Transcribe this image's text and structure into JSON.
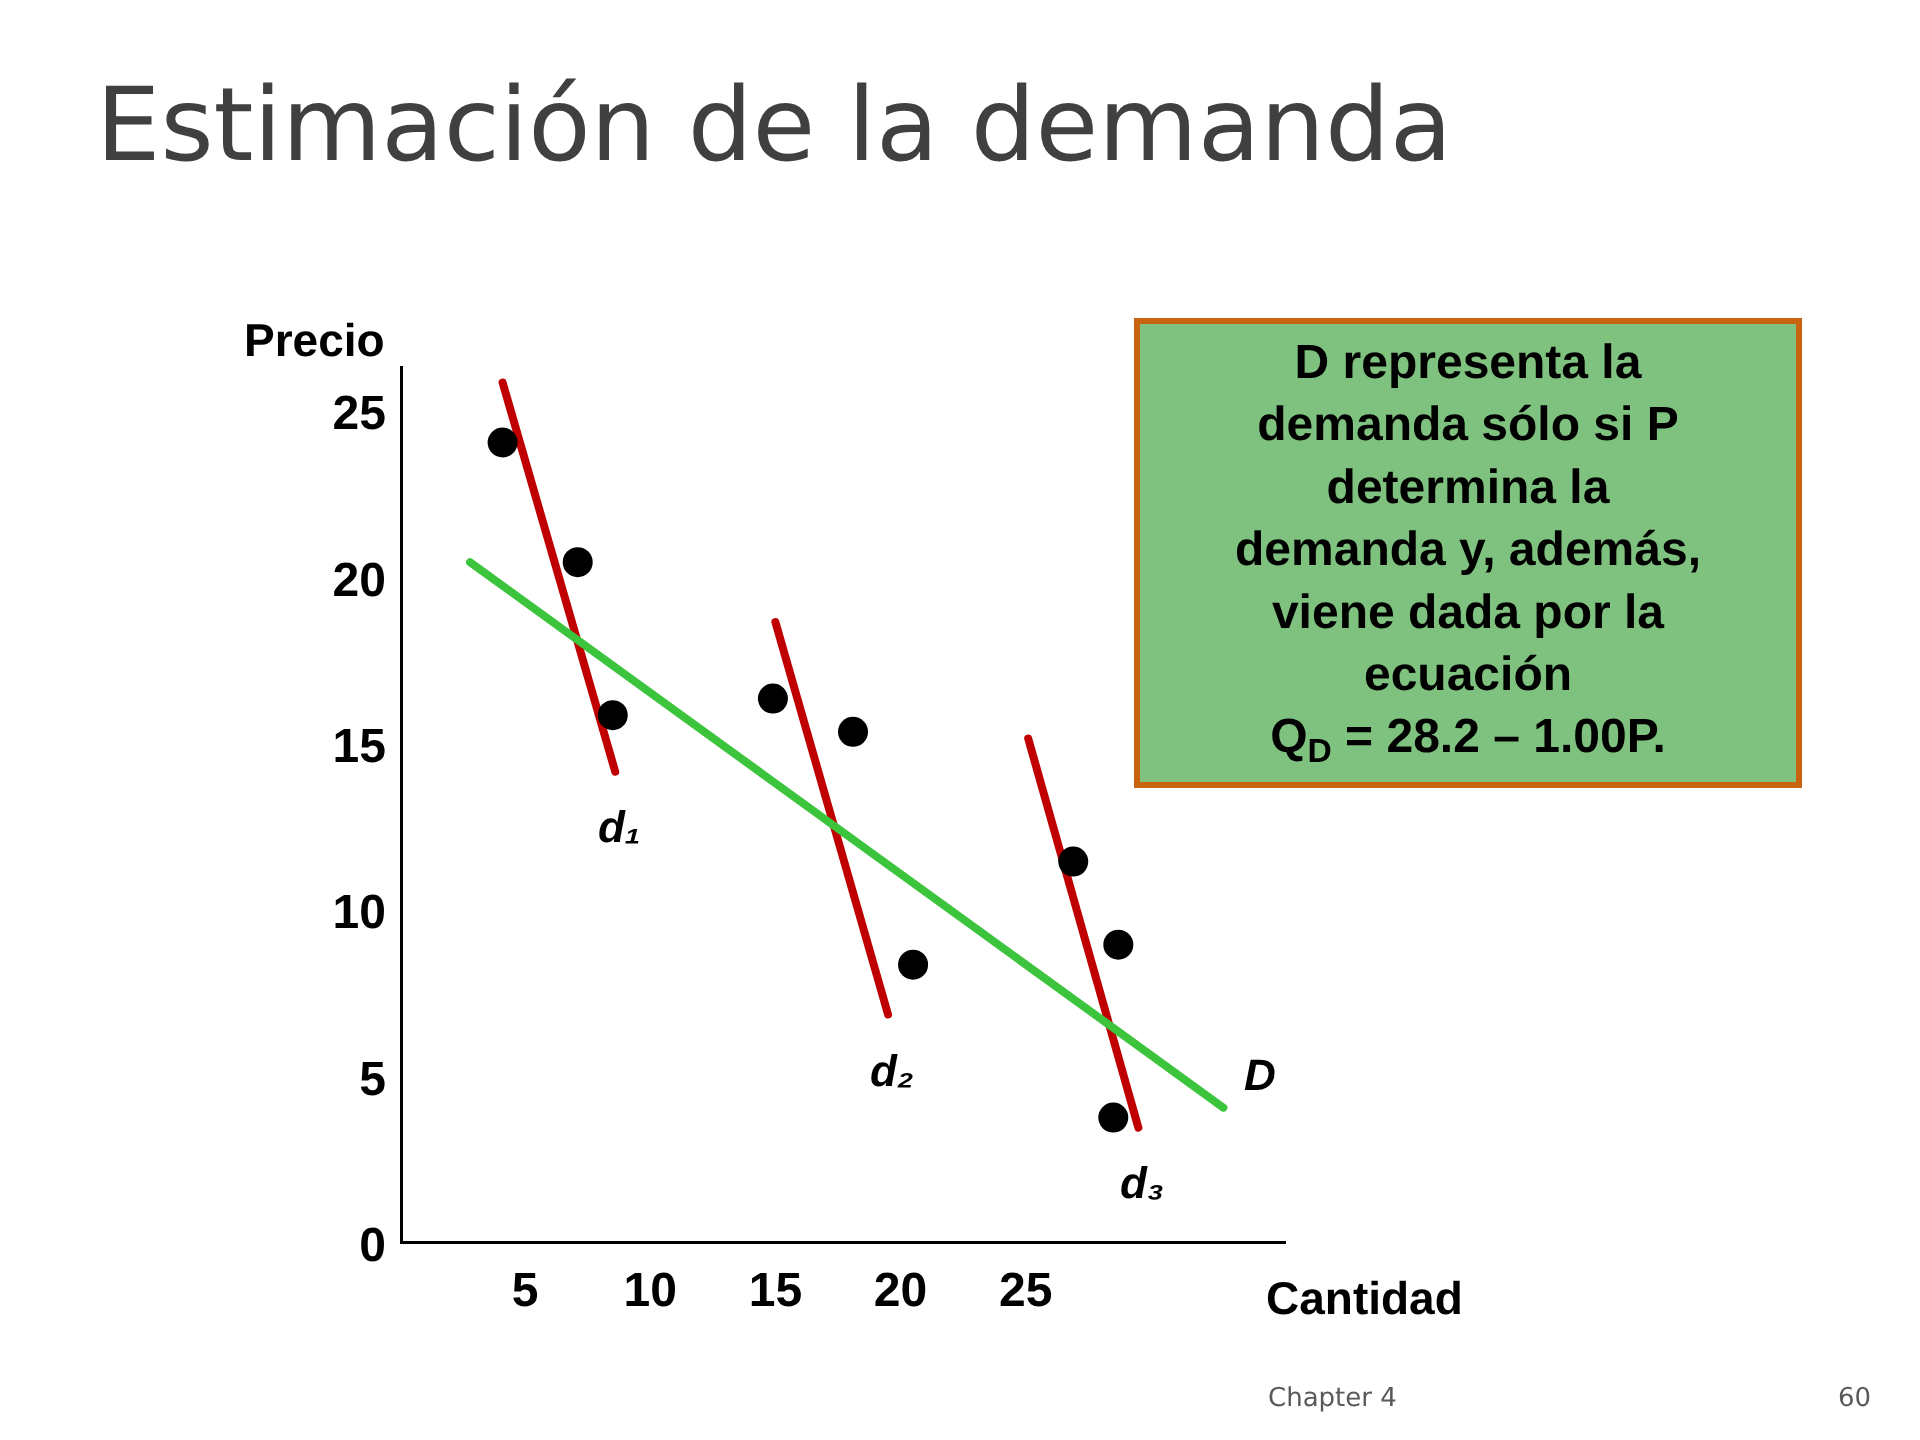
{
  "chart_data": {
    "type": "scatter",
    "title": "Estimación de la demanda",
    "xlabel": "Cantidad",
    "ylabel": "Precio",
    "xlim": [
      0,
      35.4
    ],
    "ylim": [
      0,
      26.4
    ],
    "xticks": [
      5,
      10,
      15,
      20,
      25
    ],
    "yticks": [
      0,
      5,
      10,
      15,
      20,
      25
    ],
    "series": [
      {
        "color": "#000000",
        "marker": "circle",
        "x": [
          4.1,
          7.1,
          8.5,
          14.9,
          18.1,
          20.5,
          26.9,
          28.7,
          28.5
        ],
        "values": [
          24.1,
          20.5,
          15.9,
          16.4,
          15.4,
          8.4,
          11.5,
          9.0,
          3.8
        ]
      },
      {
        "type": "line",
        "marker": "none",
        "name": "d₁",
        "color": "#c00000",
        "x": [
          4.1,
          8.6
        ],
        "values": [
          25.9,
          14.2
        ]
      },
      {
        "type": "line",
        "marker": "none",
        "name": "d₂",
        "color": "#c00000",
        "x": [
          15.0,
          19.5
        ],
        "values": [
          18.7,
          6.9
        ]
      },
      {
        "type": "line",
        "marker": "none",
        "name": "d₃",
        "color": "#c00000",
        "x": [
          25.1,
          29.5
        ],
        "values": [
          15.2,
          3.5
        ]
      },
      {
        "type": "line",
        "marker": "none",
        "name": "D",
        "color": "#3cc43c",
        "x": [
          2.8,
          32.9
        ],
        "values": [
          20.5,
          4.1
        ]
      }
    ],
    "annotations": [
      "D representa la\ndemanda sólo si P\ndetermina la\ndemanda y, además,\nviene dada por la\necuación\nQ$_{D}$ = 28.2 – 1.00P.",
      "Chapter 4",
      "60"
    ]
  }
}
